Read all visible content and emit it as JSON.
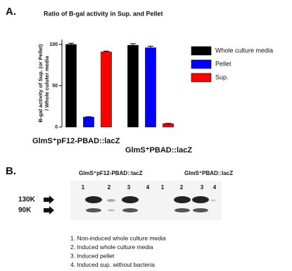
{
  "chart_data": {
    "type": "bar",
    "panel_label": "A.",
    "title": "Ratio of B-gal activity in Sup. and Pellet",
    "ylabel": [
      "B-gal activity of Sup. (or Pellet)",
      "/ Whole culuter media"
    ],
    "categories": [
      "GlmS⁺pF12-PBAD::lacZ",
      "GlmS⁺PBAD::lacZ"
    ],
    "series": [
      {
        "name": "Whole culture media",
        "color": "#000000",
        "values": [
          100,
          99
        ],
        "errors": [
          1.5,
          2
        ]
      },
      {
        "name": "Pellet",
        "color": "#0000ff",
        "values": [
          12,
          96
        ],
        "errors": [
          0.5,
          2
        ]
      },
      {
        "name": "Sup.",
        "color": "#ff0000",
        "values": [
          91,
          4
        ],
        "errors": [
          1,
          0.5
        ]
      }
    ],
    "ylim": [
      0,
      106
    ],
    "yticks": [
      0,
      50,
      100
    ],
    "legend": "right"
  },
  "blot": {
    "panel_label": "B.",
    "groups": [
      {
        "title": "GlmS⁺pF12-PBAD::lacZ",
        "lanes": [
          "1",
          "2",
          "3",
          "4"
        ]
      },
      {
        "title": "GlmS⁺PBAD::lacZ",
        "lanes": [
          "1",
          "2",
          "3",
          "4"
        ]
      }
    ],
    "markers": [
      "130K",
      "90K"
    ],
    "legend": [
      "1.  Non-induced whole culture media",
      "2.  Induced whole culture media",
      "3.  Induced pellet",
      "4.  Induced sup. without bacteria"
    ]
  }
}
